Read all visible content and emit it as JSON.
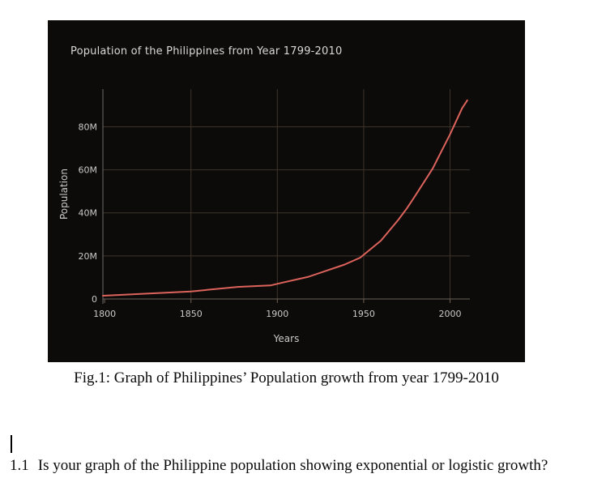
{
  "chart_data": {
    "type": "line",
    "title": "Population of the Philippines from Year 1799-2010",
    "xlabel": "Years",
    "ylabel": "Population",
    "series": [
      {
        "name": "Philippines population",
        "x": [
          1799,
          1850,
          1877,
          1887,
          1896,
          1903,
          1918,
          1939,
          1948,
          1960,
          1970,
          1975,
          1980,
          1990,
          1995,
          2000,
          2007,
          2010
        ],
        "y_millions": [
          1.5,
          3.5,
          5.6,
          6.0,
          6.3,
          7.6,
          10.3,
          16.0,
          19.2,
          27.1,
          36.7,
          42.1,
          48.1,
          60.7,
          68.6,
          76.5,
          88.6,
          92.3
        ]
      }
    ],
    "xlim": [
      1799,
      2011.5
    ],
    "ylim": [
      0,
      97.5
    ],
    "xticks": [
      1800,
      1850,
      1900,
      1950,
      2000
    ],
    "xtick_labels": [
      "1800",
      "1850",
      "1900",
      "1950",
      "2000"
    ],
    "yticks": [
      0,
      20,
      40,
      60,
      80
    ],
    "ytick_labels": [
      "0",
      "20M",
      "40M",
      "60M",
      "80M"
    ],
    "grid": true,
    "legend": false,
    "background": "#0d0b09",
    "line_color": "#dc635c",
    "grid_color": "#3c342a",
    "axis_color": "#6b6156",
    "text_color": "#c9c9c9"
  },
  "document": {
    "caption": "Fig.1: Graph of Philippines’ Population growth from year 1799-2010",
    "question_number": "1.1",
    "question_text": "Is your graph of the Philippine population showing exponential or logistic growth?"
  }
}
